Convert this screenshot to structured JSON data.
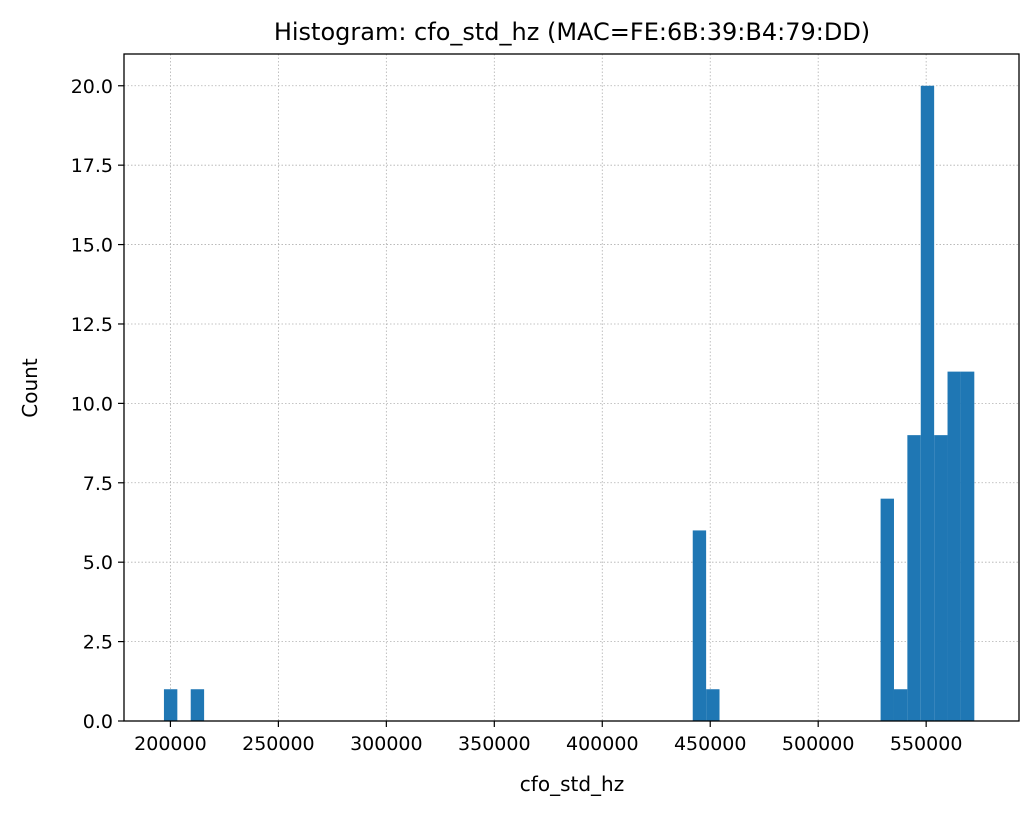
{
  "chart_data": {
    "type": "bar",
    "title": "Histogram: cfo_std_hz (MAC=FE:6B:39:B4:79:DD)",
    "xlabel": "cfo_std_hz",
    "ylabel": "Count",
    "xlim": [
      178500,
      593000
    ],
    "ylim": [
      0,
      21
    ],
    "grid": true,
    "color": "#1f77b4",
    "bin_width": 6200,
    "bins": [
      {
        "start": 197000,
        "count": 1
      },
      {
        "start": 209400,
        "count": 1
      },
      {
        "start": 441900,
        "count": 6
      },
      {
        "start": 448100,
        "count": 1
      },
      {
        "start": 528900,
        "count": 7
      },
      {
        "start": 535100,
        "count": 1
      },
      {
        "start": 541300,
        "count": 9
      },
      {
        "start": 547500,
        "count": 20
      },
      {
        "start": 553700,
        "count": 9
      },
      {
        "start": 559900,
        "count": 11
      },
      {
        "start": 566100,
        "count": 11
      }
    ],
    "x_ticks": [
      200000,
      250000,
      300000,
      350000,
      400000,
      450000,
      500000,
      550000
    ],
    "x_tick_labels": [
      "200000",
      "250000",
      "300000",
      "350000",
      "400000",
      "450000",
      "500000",
      "550000"
    ],
    "y_ticks": [
      0,
      2.5,
      5,
      7.5,
      10,
      12.5,
      15,
      17.5,
      20
    ],
    "y_tick_labels": [
      "0.0",
      "2.5",
      "5.0",
      "7.5",
      "10.0",
      "12.5",
      "15.0",
      "17.5",
      "20.0"
    ]
  }
}
